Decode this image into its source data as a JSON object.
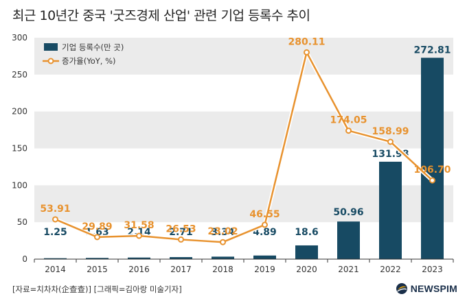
{
  "title": "최근 10년간 중국 '굿즈경제 산업' 관련 기업 등록수 추이",
  "source": "[자료=치차차(企查查)] [그래픽=김아랑 미술기자]",
  "logo": "NEWSPIM",
  "colors": {
    "bar": "#174a63",
    "line": "#e8922e",
    "band": "#ebebeb"
  },
  "chart_data": {
    "type": "bar",
    "title": "최근 10년간 중국 '굿즈경제 산업' 관련 기업 등록수 추이",
    "categories": [
      "2014",
      "2015",
      "2016",
      "2017",
      "2018",
      "2019",
      "2020",
      "2021",
      "2022",
      "2023"
    ],
    "series": [
      {
        "name": "기업 등록수(만 곳)",
        "type": "bar",
        "values": [
          1.25,
          1.63,
          2.14,
          2.71,
          3.34,
          4.89,
          18.6,
          50.96,
          131.98,
          272.81
        ],
        "labels": [
          "1.25",
          "1.63",
          "2.14",
          "2.71",
          "3.34",
          "4.89",
          "18.6",
          "50.96",
          "131.98",
          "272.81"
        ]
      },
      {
        "name": "증가율(YoY, %)",
        "type": "line",
        "values": [
          53.91,
          29.89,
          31.58,
          26.53,
          23.02,
          46.55,
          280.11,
          174.05,
          158.99,
          106.7
        ],
        "labels": [
          "53.91",
          "29.89",
          "31.58",
          "26.53",
          "23.02",
          "46.55",
          "280.11",
          "174.05",
          "158.99",
          "106.70"
        ]
      }
    ],
    "yticks": [
      "0",
      "50",
      "100",
      "150",
      "200",
      "250",
      "300"
    ],
    "ylim": [
      0,
      300
    ],
    "legend": "top-left",
    "grid": "alternating bands"
  }
}
